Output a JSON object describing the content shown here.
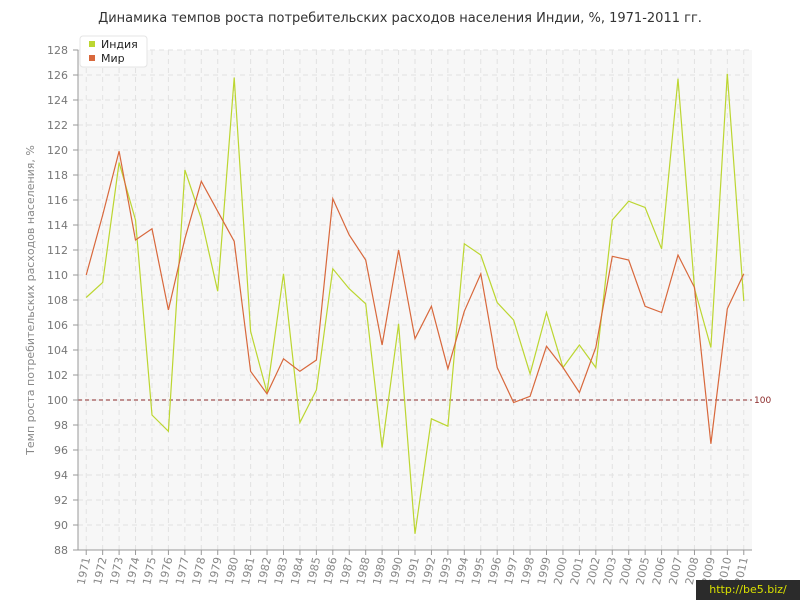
{
  "chart_data": {
    "type": "line",
    "title": "Динамика темпов роста потребительских расходов населения Индии, %, 1971-2011 гг.",
    "xlabel": "",
    "ylabel": "Темп роста потребительских расходов населения, %",
    "x": [
      "1971",
      "1972",
      "1973",
      "1974",
      "1975",
      "1976",
      "1977",
      "1978",
      "1979",
      "1980",
      "1981",
      "1982",
      "1983",
      "1984",
      "1985",
      "1986",
      "1987",
      "1988",
      "1989",
      "1990",
      "1991",
      "1992",
      "1993",
      "1994",
      "1995",
      "1996",
      "1997",
      "1998",
      "1999",
      "2000",
      "2001",
      "2002",
      "2003",
      "2004",
      "2005",
      "2006",
      "2007",
      "2008",
      "2009",
      "2010",
      "2011"
    ],
    "ylim": [
      88,
      128
    ],
    "yticks": [
      88,
      90,
      92,
      94,
      96,
      98,
      100,
      102,
      104,
      106,
      108,
      110,
      112,
      114,
      116,
      118,
      120,
      122,
      124,
      126,
      128
    ],
    "series": [
      {
        "name": "Индия",
        "color": "#bcd631",
        "values": [
          108.2,
          109.4,
          119.0,
          114.4,
          98.8,
          97.5,
          118.4,
          114.5,
          108.7,
          125.8,
          105.5,
          100.6,
          110.1,
          98.2,
          100.8,
          110.5,
          108.9,
          107.7,
          96.2,
          106.1,
          89.3,
          98.5,
          97.9,
          112.5,
          111.6,
          107.8,
          106.4,
          102.1,
          107.0,
          102.6,
          104.4,
          102.6,
          114.4,
          115.9,
          115.4,
          112.1,
          125.7,
          108.9,
          104.2,
          126.1,
          107.9
        ]
      },
      {
        "name": "Мир",
        "color": "#d8683c",
        "values": [
          110.0,
          114.8,
          119.9,
          112.8,
          113.7,
          107.2,
          112.9,
          117.5,
          115.1,
          112.7,
          102.3,
          100.5,
          103.3,
          102.3,
          103.2,
          116.1,
          113.2,
          111.2,
          104.4,
          112.0,
          104.9,
          107.5,
          102.5,
          107.1,
          110.1,
          102.6,
          99.8,
          100.3,
          104.3,
          102.6,
          100.6,
          104.2,
          111.5,
          111.2,
          107.5,
          107.0,
          111.6,
          109.0,
          96.5,
          107.3,
          110.1
        ]
      }
    ],
    "reference_line": {
      "value": 100,
      "label": "100",
      "color": "#8b2a2a"
    },
    "grid": true,
    "legend": "top-left"
  },
  "watermark": "http://be5.biz/"
}
